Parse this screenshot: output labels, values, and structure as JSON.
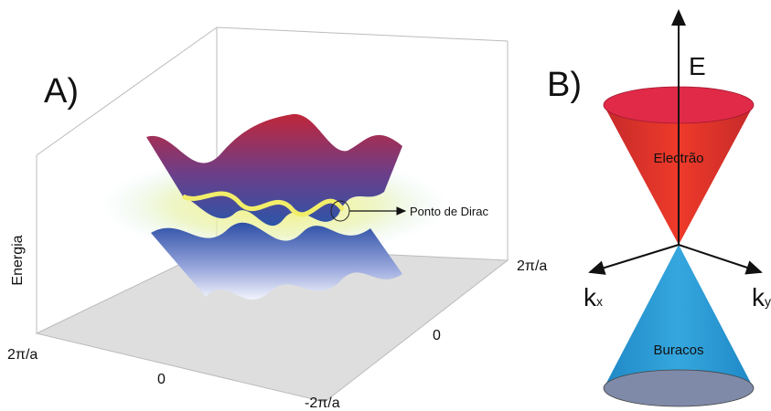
{
  "panel_a": {
    "label": "A)",
    "y_axis_label": "Energia",
    "annotation": "Ponto de Dirac",
    "front_ticks": [
      "2π/a",
      "0",
      "-2π/a"
    ],
    "side_ticks": [
      "2π/a",
      "0"
    ]
  },
  "panel_b": {
    "label": "B)",
    "energy_axis": "E",
    "upper_cone": "Electrão",
    "lower_cone": "Buracos",
    "kx": {
      "symbol": "k",
      "subscript": "x"
    },
    "ky": {
      "symbol": "k",
      "subscript": "y"
    }
  }
}
